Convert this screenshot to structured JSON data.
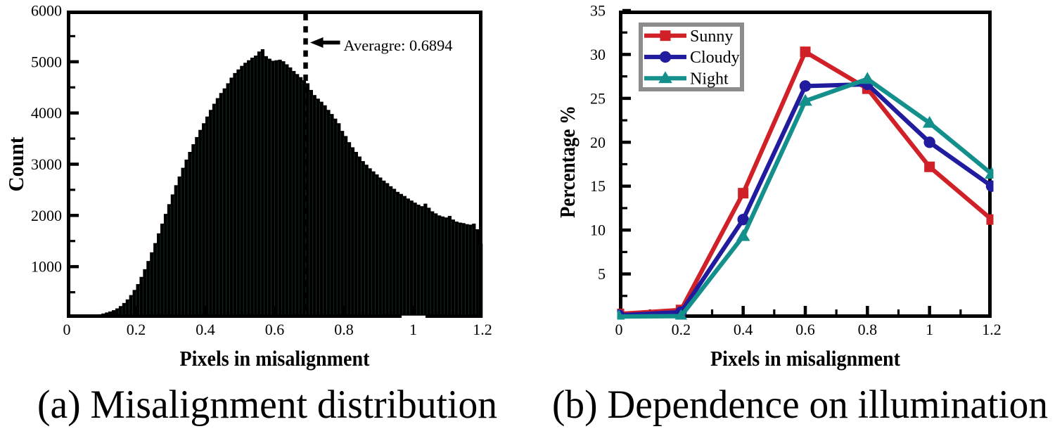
{
  "figure": {
    "background": "#ffffff",
    "captions": {
      "a": "(a) Misalignment distribution",
      "b": "(b) Dependence on illumination"
    }
  },
  "chart_data": [
    {
      "id": "misalignment-histogram",
      "type": "bar",
      "xlabel": "Pixels in misalignment",
      "ylabel": "Count",
      "xlim": [
        0,
        1.2
      ],
      "ylim": [
        0,
        6000
      ],
      "x_tick_labels": [
        "0",
        "0.2",
        "0.4",
        "0.6",
        "0.8",
        "1",
        "1.2"
      ],
      "x_ticks": [
        0,
        0.2,
        0.4,
        0.6,
        0.8,
        1.0,
        1.2
      ],
      "y_tick_labels": [
        "1000",
        "2000",
        "3000",
        "4000",
        "5000",
        "6000"
      ],
      "y_ticks": [
        1000,
        2000,
        3000,
        4000,
        5000,
        6000
      ],
      "y_minor_ticks": [
        500,
        1500,
        2500,
        3500,
        4500,
        5500
      ],
      "bar_color": "#000000",
      "separator_color": "#2a5f52",
      "bin_start": 0,
      "bin_width": 0.01,
      "values": [
        0,
        0,
        0,
        10,
        18,
        28,
        38,
        48,
        58,
        70,
        85,
        105,
        125,
        150,
        185,
        230,
        290,
        360,
        445,
        545,
        660,
        800,
        950,
        1110,
        1280,
        1460,
        1650,
        1840,
        2030,
        2220,
        2410,
        2590,
        2760,
        2930,
        3090,
        3240,
        3390,
        3530,
        3670,
        3800,
        3930,
        4060,
        4180,
        4290,
        4390,
        4480,
        4580,
        4690,
        4780,
        4850,
        4920,
        4980,
        5030,
        5080,
        5120,
        5200,
        5245,
        5110,
        5060,
        5020,
        5030,
        5040,
        5010,
        4950,
        4890,
        4820,
        4760,
        4700,
        4640,
        4580,
        4450,
        4350,
        4280,
        4220,
        4150,
        4060,
        3980,
        3890,
        3800,
        3650,
        3550,
        3430,
        3330,
        3240,
        3150,
        3060,
        2990,
        2920,
        2860,
        2800,
        2740,
        2680,
        2630,
        2570,
        2520,
        2460,
        2420,
        2380,
        2330,
        2290,
        2250,
        2210,
        2180,
        2230,
        2150,
        2080,
        2040,
        2000,
        1980,
        1960,
        1990,
        1920,
        1880,
        1860,
        1850,
        1830,
        1820,
        1840,
        1730,
        1450
      ],
      "annotation": {
        "label": "Averagre: 0.6894",
        "value": 0.6894
      }
    },
    {
      "id": "illumination-dependence",
      "type": "line",
      "xlabel": "Pixels in misalignment",
      "ylabel": "Percentage %",
      "xlim": [
        0,
        1.2
      ],
      "ylim": [
        0,
        35
      ],
      "x_tick_labels": [
        "0",
        "0.2",
        "0.4",
        "0.6",
        "0.8",
        "1",
        "1.2"
      ],
      "x_ticks": [
        0,
        0.2,
        0.4,
        0.6,
        0.8,
        1.0,
        1.2
      ],
      "x_minor_ticks": [
        0.1,
        0.3,
        0.5,
        0.7,
        0.9,
        1.1
      ],
      "y_tick_labels": [
        "5",
        "10",
        "15",
        "20",
        "25",
        "30",
        "35"
      ],
      "y_ticks": [
        5,
        10,
        15,
        20,
        25,
        30,
        35
      ],
      "y_minor_ticks": [
        2.5,
        7.5,
        12.5,
        17.5,
        22.5,
        27.5,
        32.5
      ],
      "x": [
        0,
        0.2,
        0.4,
        0.6,
        0.8,
        1.0,
        1.2
      ],
      "series": [
        {
          "name": "Sunny",
          "color": "#cf2127",
          "marker": "square",
          "values": [
            0.45,
            0.9,
            14.2,
            30.3,
            26.1,
            17.2,
            11.2
          ]
        },
        {
          "name": "Cloudy",
          "color": "#211c9e",
          "marker": "circle",
          "values": [
            0.3,
            0.65,
            11.2,
            26.4,
            26.6,
            20.0,
            15.0
          ]
        },
        {
          "name": "Night",
          "color": "#13908c",
          "marker": "triangle",
          "values": [
            0.15,
            0.2,
            9.3,
            24.7,
            27.2,
            22.2,
            16.4
          ]
        }
      ],
      "legend": {
        "position": "top-left",
        "border_color": "#8c8c8c",
        "entries": [
          "Sunny",
          "Cloudy",
          "Night"
        ]
      }
    }
  ]
}
